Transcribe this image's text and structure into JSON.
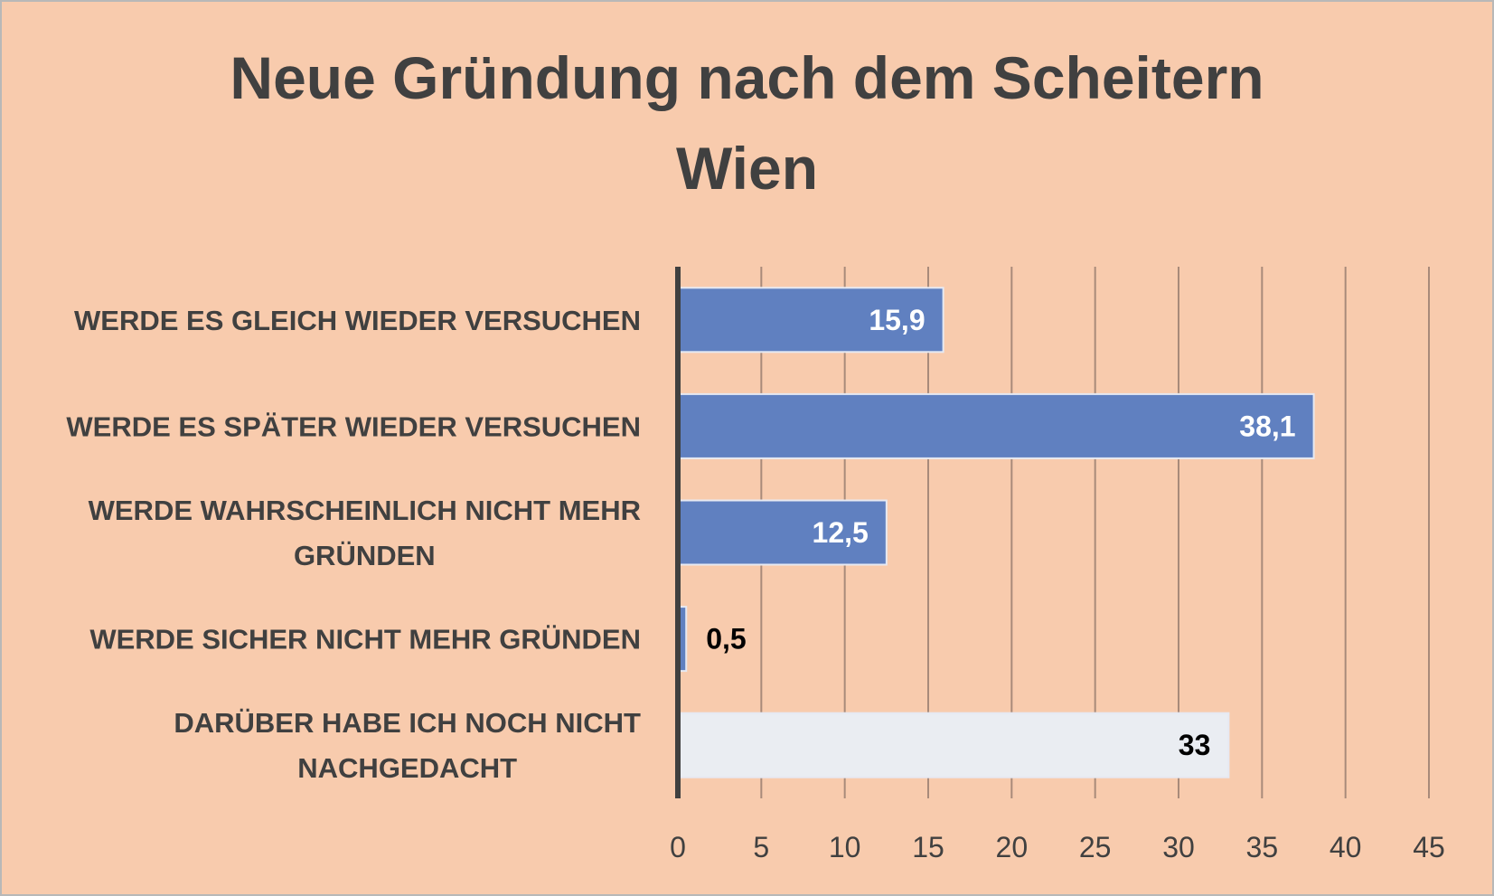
{
  "chart_data": {
    "type": "bar",
    "orientation": "horizontal",
    "title": [
      "Neue Gründung nach dem Scheitern",
      "Wien"
    ],
    "categories": [
      [
        "WERDE ES GLEICH WIEDER VERSUCHEN"
      ],
      [
        "WERDE ES SPÄTER WIEDER VERSUCHEN"
      ],
      [
        "WERDE WAHRSCHEINLICH NICHT MEHR",
        "GRÜNDEN"
      ],
      [
        "WERDE SICHER NICHT MEHR GRÜNDEN"
      ],
      [
        "DARÜBER HABE ICH NOCH NICHT",
        "NACHGEDACHT"
      ]
    ],
    "values": [
      15.9,
      38.1,
      12.5,
      0.5,
      33
    ],
    "data_labels": [
      "15,9",
      "38,1",
      "12,5",
      "0,5",
      "33"
    ],
    "bar_colors": [
      "#6080c0",
      "#6080c0",
      "#6080c0",
      "#6080c0",
      "#eaedf2"
    ],
    "label_colors": [
      "#ffffff",
      "#ffffff",
      "#ffffff",
      "#000000",
      "#000000"
    ],
    "xlim": [
      0,
      45
    ],
    "xticks": [
      "0",
      "5",
      "10",
      "15",
      "20",
      "25",
      "30",
      "35",
      "40",
      "45"
    ],
    "grid": true,
    "background": "#f8cbad",
    "xlabel": "",
    "ylabel": ""
  }
}
